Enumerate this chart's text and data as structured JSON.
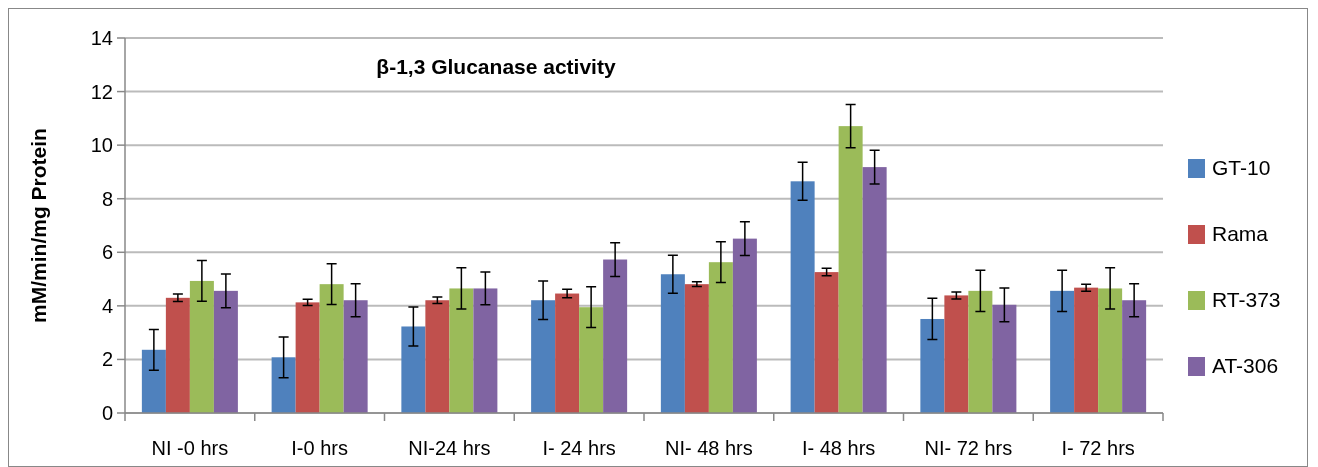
{
  "chart_data": {
    "type": "bar",
    "title": "β-1,3 Glucanase activity",
    "ylabel": "mM/min/mg Protein",
    "categories": [
      "NI -0 hrs",
      "I-0 hrs",
      "NI-24 hrs",
      "I- 24 hrs",
      "NI- 48 hrs",
      "I- 48 hrs",
      "NI- 72 hrs",
      "I- 72 hrs"
    ],
    "series": [
      {
        "name": "GT-10",
        "color": "#4f81bd",
        "values": [
          2.36,
          2.08,
          3.23,
          4.21,
          5.18,
          8.65,
          3.51,
          4.56
        ],
        "errors": [
          0.76,
          0.76,
          0.73,
          0.72,
          0.71,
          0.71,
          0.77,
          0.77
        ]
      },
      {
        "name": "Rama",
        "color": "#c0504d",
        "values": [
          4.3,
          4.13,
          4.21,
          4.46,
          4.81,
          5.26,
          4.39,
          4.68
        ],
        "errors": [
          0.14,
          0.12,
          0.12,
          0.16,
          0.09,
          0.14,
          0.13,
          0.13
        ]
      },
      {
        "name": "RT-373",
        "color": "#9bbb59",
        "values": [
          4.93,
          4.81,
          4.65,
          3.95,
          5.63,
          10.71,
          4.56,
          4.65
        ],
        "errors": [
          0.76,
          0.76,
          0.77,
          0.76,
          0.76,
          0.81,
          0.77,
          0.77
        ]
      },
      {
        "name": "AT-306",
        "color": "#8064a2",
        "values": [
          4.56,
          4.21,
          4.65,
          5.73,
          6.51,
          9.18,
          4.04,
          4.21
        ],
        "errors": [
          0.63,
          0.62,
          0.61,
          0.63,
          0.63,
          0.63,
          0.63,
          0.62
        ]
      }
    ],
    "ylim": [
      0,
      14
    ],
    "yticks": [
      0,
      2,
      4,
      6,
      8,
      10,
      12,
      14
    ],
    "grid": "y",
    "legend": "right"
  }
}
